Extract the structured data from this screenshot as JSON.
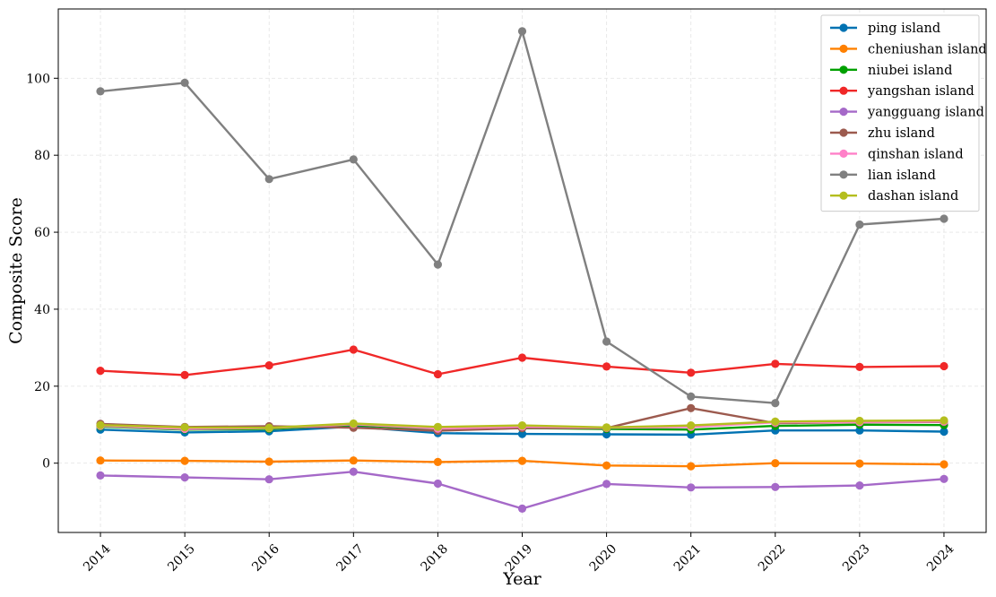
{
  "chart_data": {
    "type": "line",
    "title": "",
    "xlabel": "Year",
    "ylabel": "Composite Score",
    "x": [
      2014,
      2015,
      2016,
      2017,
      2018,
      2019,
      2020,
      2021,
      2022,
      2023,
      2024
    ],
    "xlim": [
      2013.5,
      2024.5
    ],
    "ylim": [
      -18,
      118
    ],
    "yticks": [
      0,
      20,
      40,
      60,
      80,
      100
    ],
    "grid": true,
    "legend_position": "top-right",
    "series": [
      {
        "name": "ping island",
        "color": "#0072b2",
        "values": [
          8.7,
          8.0,
          8.3,
          9.5,
          7.8,
          7.6,
          7.5,
          7.4,
          8.5,
          8.5,
          8.2
        ]
      },
      {
        "name": "cheniushan island",
        "color": "#ff8000",
        "values": [
          0.7,
          0.6,
          0.4,
          0.7,
          0.3,
          0.6,
          -0.6,
          -0.8,
          0.0,
          -0.1,
          -0.3
        ]
      },
      {
        "name": "niubei island",
        "color": "#00a000",
        "values": [
          9.5,
          8.7,
          8.9,
          9.9,
          8.7,
          9.1,
          8.9,
          8.7,
          9.7,
          10.0,
          9.9
        ]
      },
      {
        "name": "yangshan island",
        "color": "#f02828",
        "values": [
          24.0,
          22.9,
          25.4,
          29.5,
          23.1,
          27.4,
          25.1,
          23.5,
          25.8,
          25.0,
          25.2
        ]
      },
      {
        "name": "yangguang island",
        "color": "#a569c8",
        "values": [
          -3.2,
          -3.7,
          -4.2,
          -2.2,
          -5.3,
          -11.8,
          -5.4,
          -6.3,
          -6.2,
          -5.8,
          -4.1
        ]
      },
      {
        "name": "zhu island",
        "color": "#9c5a4e",
        "values": [
          10.2,
          9.4,
          9.6,
          9.2,
          8.4,
          9.1,
          9.1,
          14.3,
          10.4,
          10.6,
          10.7
        ]
      },
      {
        "name": "qinshan island",
        "color": "#ff80c8",
        "values": [
          9.7,
          8.9,
          9.1,
          10.1,
          9.0,
          9.5,
          9.2,
          9.4,
          10.6,
          10.7,
          10.8
        ]
      },
      {
        "name": "lian island",
        "color": "#808080",
        "values": [
          96.6,
          98.8,
          73.8,
          78.9,
          51.6,
          112.2,
          31.6,
          17.3,
          15.6,
          62.0,
          63.5
        ]
      },
      {
        "name": "dashan island",
        "color": "#b4be1e",
        "values": [
          9.9,
          9.3,
          9.2,
          10.3,
          9.4,
          9.8,
          9.3,
          9.8,
          10.8,
          11.0,
          11.1
        ]
      }
    ]
  }
}
